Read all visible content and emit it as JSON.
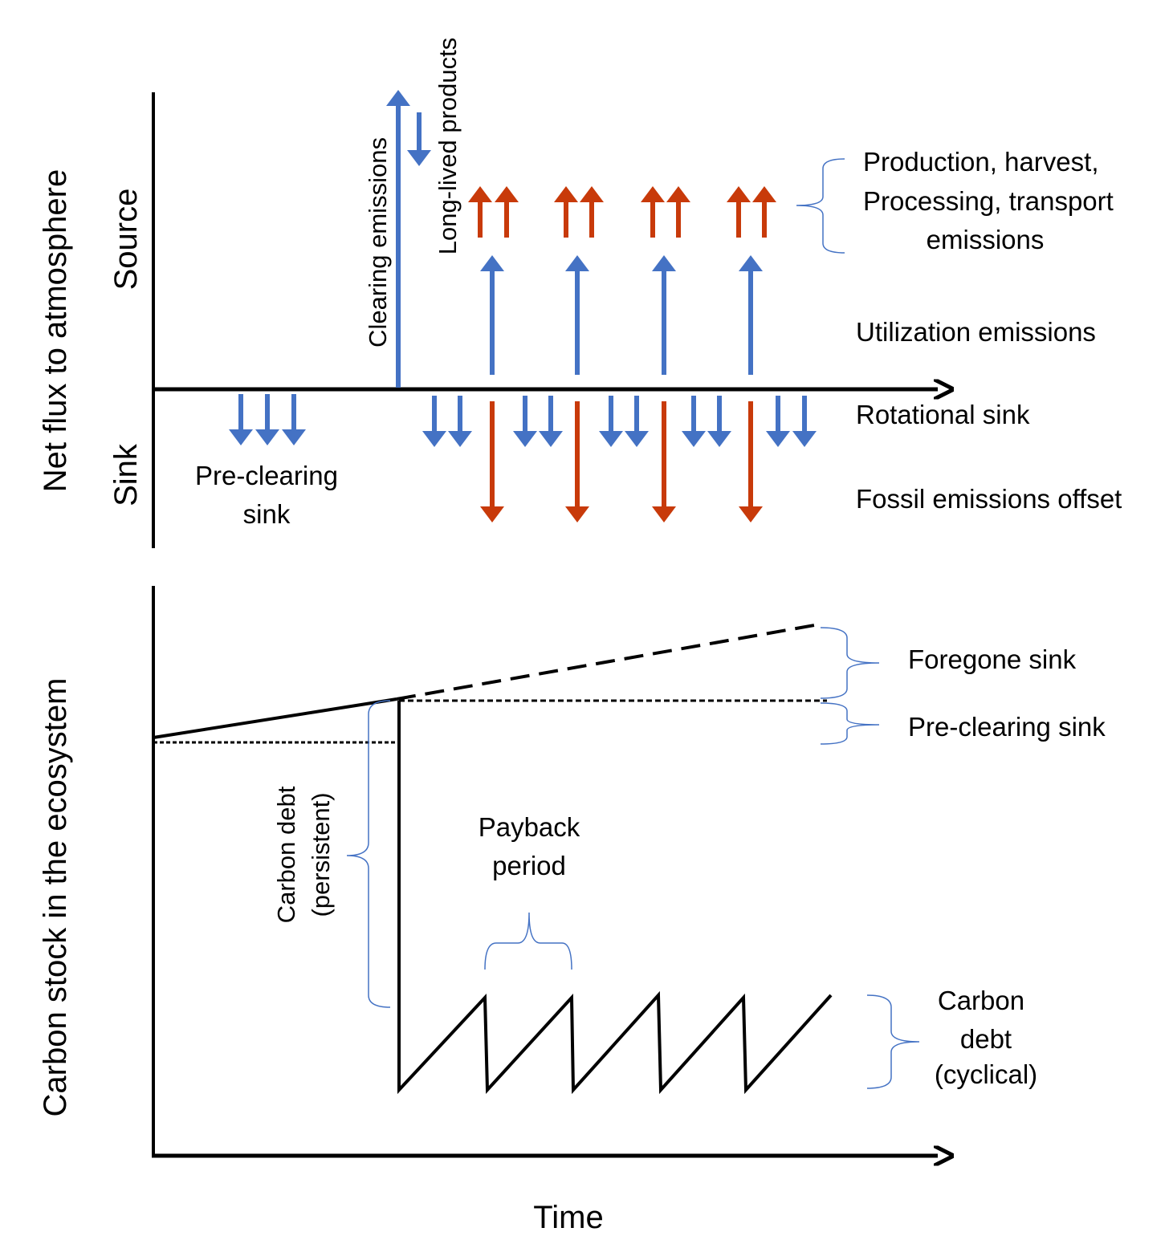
{
  "colors": {
    "blue": "#4472C4",
    "red": "#C83A0A",
    "axis": "#000000"
  },
  "top_panel": {
    "ylabel": "Net flux to atmosphere",
    "source_label": "Source",
    "sink_label": "Sink",
    "clearing_emissions": "Clearing emissions",
    "long_lived_products": "Long-lived products",
    "pre_clearing_sink": [
      "Pre-clearing",
      "sink"
    ],
    "legend": {
      "production": [
        "Production, harvest,",
        "Processing, transport",
        "emissions"
      ],
      "utilization": "Utilization emissions",
      "rotational": "Rotational sink",
      "fossil": "Fossil emissions offset"
    }
  },
  "bottom_panel": {
    "ylabel": "Carbon stock in the ecosystem",
    "xlabel": "Time",
    "foregone_sink": "Foregone sink",
    "pre_clearing_sink": "Pre-clearing sink",
    "carbon_debt_persistent": [
      "Carbon debt",
      "(persistent)"
    ],
    "payback_period": [
      "Payback",
      "period"
    ],
    "carbon_debt_cyclical": [
      "Carbon",
      "debt",
      "(cyclical)"
    ]
  }
}
